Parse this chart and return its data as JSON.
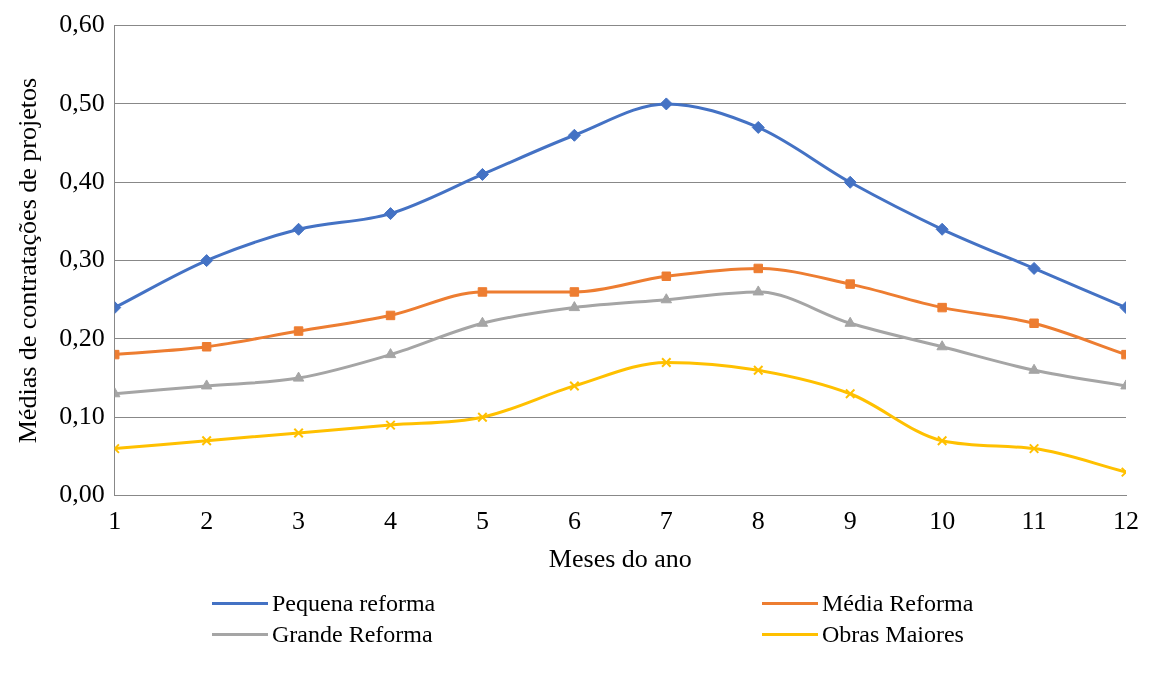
{
  "chart_data": {
    "type": "line",
    "xlabel": "Meses do ano",
    "ylabel": "Médias de contratações de projetos",
    "x": [
      1,
      2,
      3,
      4,
      5,
      6,
      7,
      8,
      9,
      10,
      11,
      12
    ],
    "xlim": [
      1,
      12
    ],
    "xticks": [
      1,
      2,
      3,
      4,
      5,
      6,
      7,
      8,
      9,
      10,
      11,
      12
    ],
    "ylim": [
      0,
      0.6
    ],
    "yticks": [
      {
        "value": 0,
        "label": "0,00"
      },
      {
        "value": 0.1,
        "label": "0,10"
      },
      {
        "value": 0.2,
        "label": "0,20"
      },
      {
        "value": 0.3,
        "label": "0,30"
      },
      {
        "value": 0.4,
        "label": "0,40"
      },
      {
        "value": 0.5,
        "label": "0,50"
      },
      {
        "value": 0.6,
        "label": "0,60"
      }
    ],
    "grid": "y",
    "legend": "bottom",
    "line_style": "solid",
    "series": [
      {
        "name": "Pequena reforma",
        "color": "#4472c4",
        "marker": "diamond",
        "values": [
          0.24,
          0.3,
          0.34,
          0.36,
          0.41,
          0.46,
          0.5,
          0.47,
          0.4,
          0.34,
          0.29,
          0.24
        ]
      },
      {
        "name": "Média Reforma",
        "color": "#ed7d31",
        "marker": "square",
        "values": [
          0.18,
          0.19,
          0.21,
          0.23,
          0.26,
          0.26,
          0.28,
          0.29,
          0.27,
          0.24,
          0.22,
          0.18
        ]
      },
      {
        "name": "Grande Reforma",
        "color": "#a5a5a5",
        "marker": "triangle",
        "values": [
          0.13,
          0.14,
          0.15,
          0.18,
          0.22,
          0.24,
          0.25,
          0.26,
          0.22,
          0.19,
          0.16,
          0.14
        ]
      },
      {
        "name": "Obras Maiores",
        "color": "#ffc000",
        "marker": "cross",
        "values": [
          0.06,
          0.07,
          0.08,
          0.09,
          0.1,
          0.14,
          0.17,
          0.16,
          0.13,
          0.07,
          0.06,
          0.03
        ]
      }
    ]
  }
}
